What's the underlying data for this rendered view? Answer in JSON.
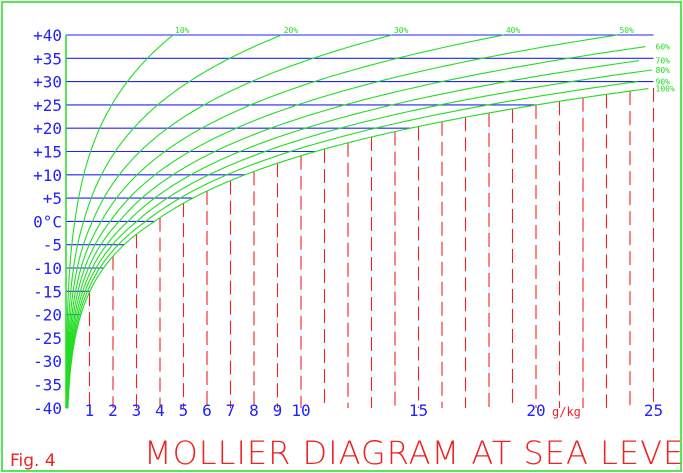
{
  "chart_data": {
    "type": "line",
    "figure_label": "Fig. 4",
    "title": "MOLLIER DIAGRAM AT SEA LEVEL",
    "x_unit": "g/kg",
    "x_range": [
      0,
      25
    ],
    "y_range": [
      -40,
      40
    ],
    "x_ticks": [
      1,
      2,
      3,
      4,
      5,
      6,
      7,
      8,
      9,
      10,
      11,
      12,
      13,
      14,
      15,
      16,
      17,
      18,
      19,
      20,
      21,
      22,
      23,
      24,
      25
    ],
    "x_tick_labels": [
      {
        "value": 1,
        "label": "1"
      },
      {
        "value": 2,
        "label": "2"
      },
      {
        "value": 3,
        "label": "3"
      },
      {
        "value": 4,
        "label": "4"
      },
      {
        "value": 5,
        "label": "5"
      },
      {
        "value": 6,
        "label": "6"
      },
      {
        "value": 7,
        "label": "7"
      },
      {
        "value": 8,
        "label": "8"
      },
      {
        "value": 9,
        "label": "9"
      },
      {
        "value": 10,
        "label": "10"
      },
      {
        "value": 15,
        "label": "15"
      },
      {
        "value": 20,
        "label": "20"
      },
      {
        "value": 25,
        "label": "25"
      }
    ],
    "y_tick_labels": [
      {
        "value": 40,
        "label": "+40"
      },
      {
        "value": 35,
        "label": "+35"
      },
      {
        "value": 30,
        "label": "+30"
      },
      {
        "value": 25,
        "label": "+25"
      },
      {
        "value": 20,
        "label": "+20"
      },
      {
        "value": 15,
        "label": "+15"
      },
      {
        "value": 10,
        "label": "+10"
      },
      {
        "value": 5,
        "label": "+5"
      },
      {
        "value": 0,
        "label": "0°C"
      },
      {
        "value": -5,
        "label": "-5"
      },
      {
        "value": -10,
        "label": "-10"
      },
      {
        "value": -15,
        "label": "-15"
      },
      {
        "value": -20,
        "label": "-20"
      },
      {
        "value": -25,
        "label": "-25"
      },
      {
        "value": -30,
        "label": "-30"
      },
      {
        "value": -35,
        "label": "-35"
      },
      {
        "value": -40,
        "label": "-40"
      }
    ],
    "series": [
      {
        "name": "10%"
      },
      {
        "name": "20%"
      },
      {
        "name": "30%"
      },
      {
        "name": "40%"
      },
      {
        "name": "50%"
      },
      {
        "name": "60%"
      },
      {
        "name": "70%"
      },
      {
        "name": "80%"
      },
      {
        "name": "90%"
      },
      {
        "name": "100%"
      }
    ],
    "colors": {
      "temperature_lines": "#2222ff",
      "humidity_lines": "#ee2222",
      "rh_curves": "#22dd22",
      "frame": "#22dd22",
      "text_blue": "#2222ff",
      "text_red": "#ee2222"
    }
  }
}
